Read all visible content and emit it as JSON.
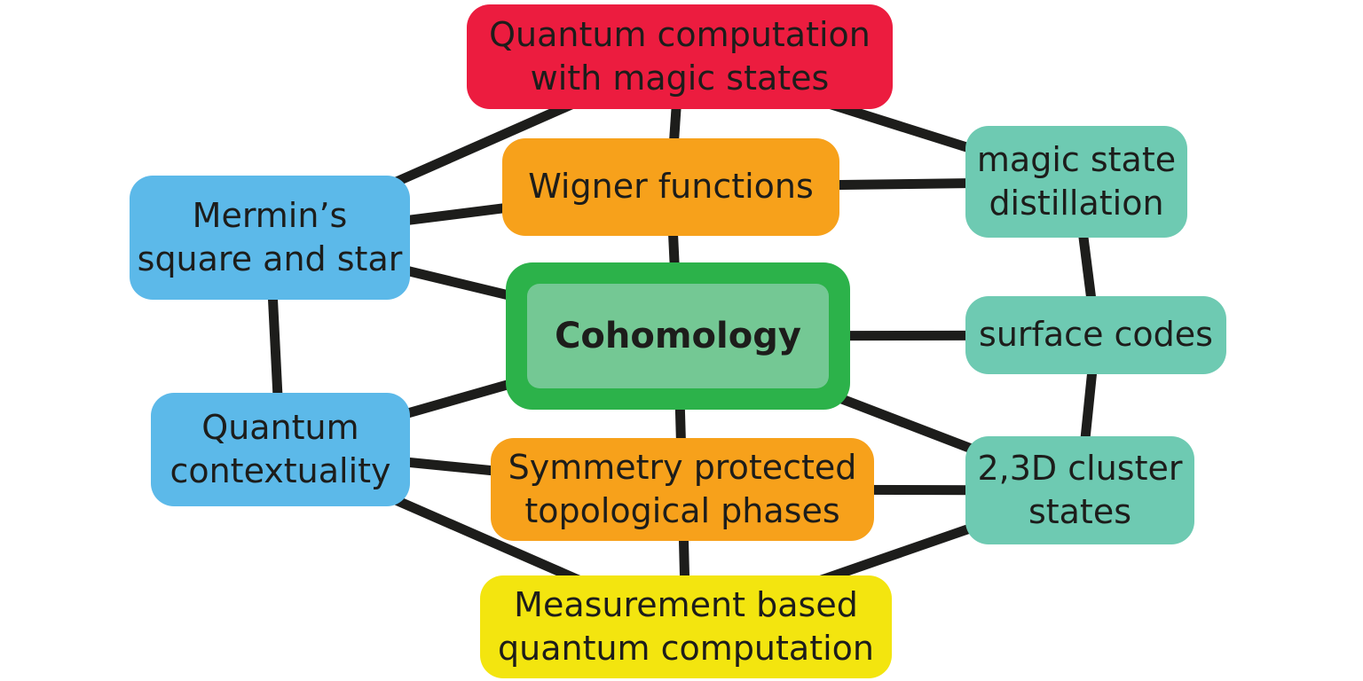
{
  "nodes": {
    "magic_computation": "Quantum computation\nwith magic states",
    "wigner": "Wigner functions",
    "cohomology": "Cohomology",
    "spt": "Symmetry protected\ntopological phases",
    "mbqc": "Measurement based\nquantum computation",
    "mermin": "Mermin’s\nsquare and star",
    "contextuality": "Quantum\ncontextuality",
    "distillation": "magic state\ndistillation",
    "surface": "surface codes",
    "cluster": "2,3D cluster\nstates"
  },
  "colors": {
    "red": "#ec1c3f",
    "orange": "#f7a11b",
    "blue": "#5cb9e9",
    "teal": "#6ecab2",
    "yellow": "#f3e50f",
    "green": "#2cb24a",
    "edge": "#1d1d1b"
  },
  "edges": [
    [
      "mermin",
      "magic_computation"
    ],
    [
      "magic_computation",
      "wigner"
    ],
    [
      "magic_computation",
      "distillation"
    ],
    [
      "mermin",
      "wigner"
    ],
    [
      "wigner",
      "distillation"
    ],
    [
      "wigner",
      "cohomology"
    ],
    [
      "mermin",
      "cohomology"
    ],
    [
      "mermin",
      "contextuality"
    ],
    [
      "contextuality",
      "cohomology"
    ],
    [
      "cohomology",
      "surface"
    ],
    [
      "cohomology",
      "cluster"
    ],
    [
      "cohomology",
      "spt"
    ],
    [
      "contextuality",
      "spt"
    ],
    [
      "spt",
      "cluster"
    ],
    [
      "spt",
      "mbqc"
    ],
    [
      "contextuality",
      "mbqc"
    ],
    [
      "mbqc",
      "cluster"
    ],
    [
      "distillation",
      "surface"
    ],
    [
      "surface",
      "cluster"
    ]
  ]
}
